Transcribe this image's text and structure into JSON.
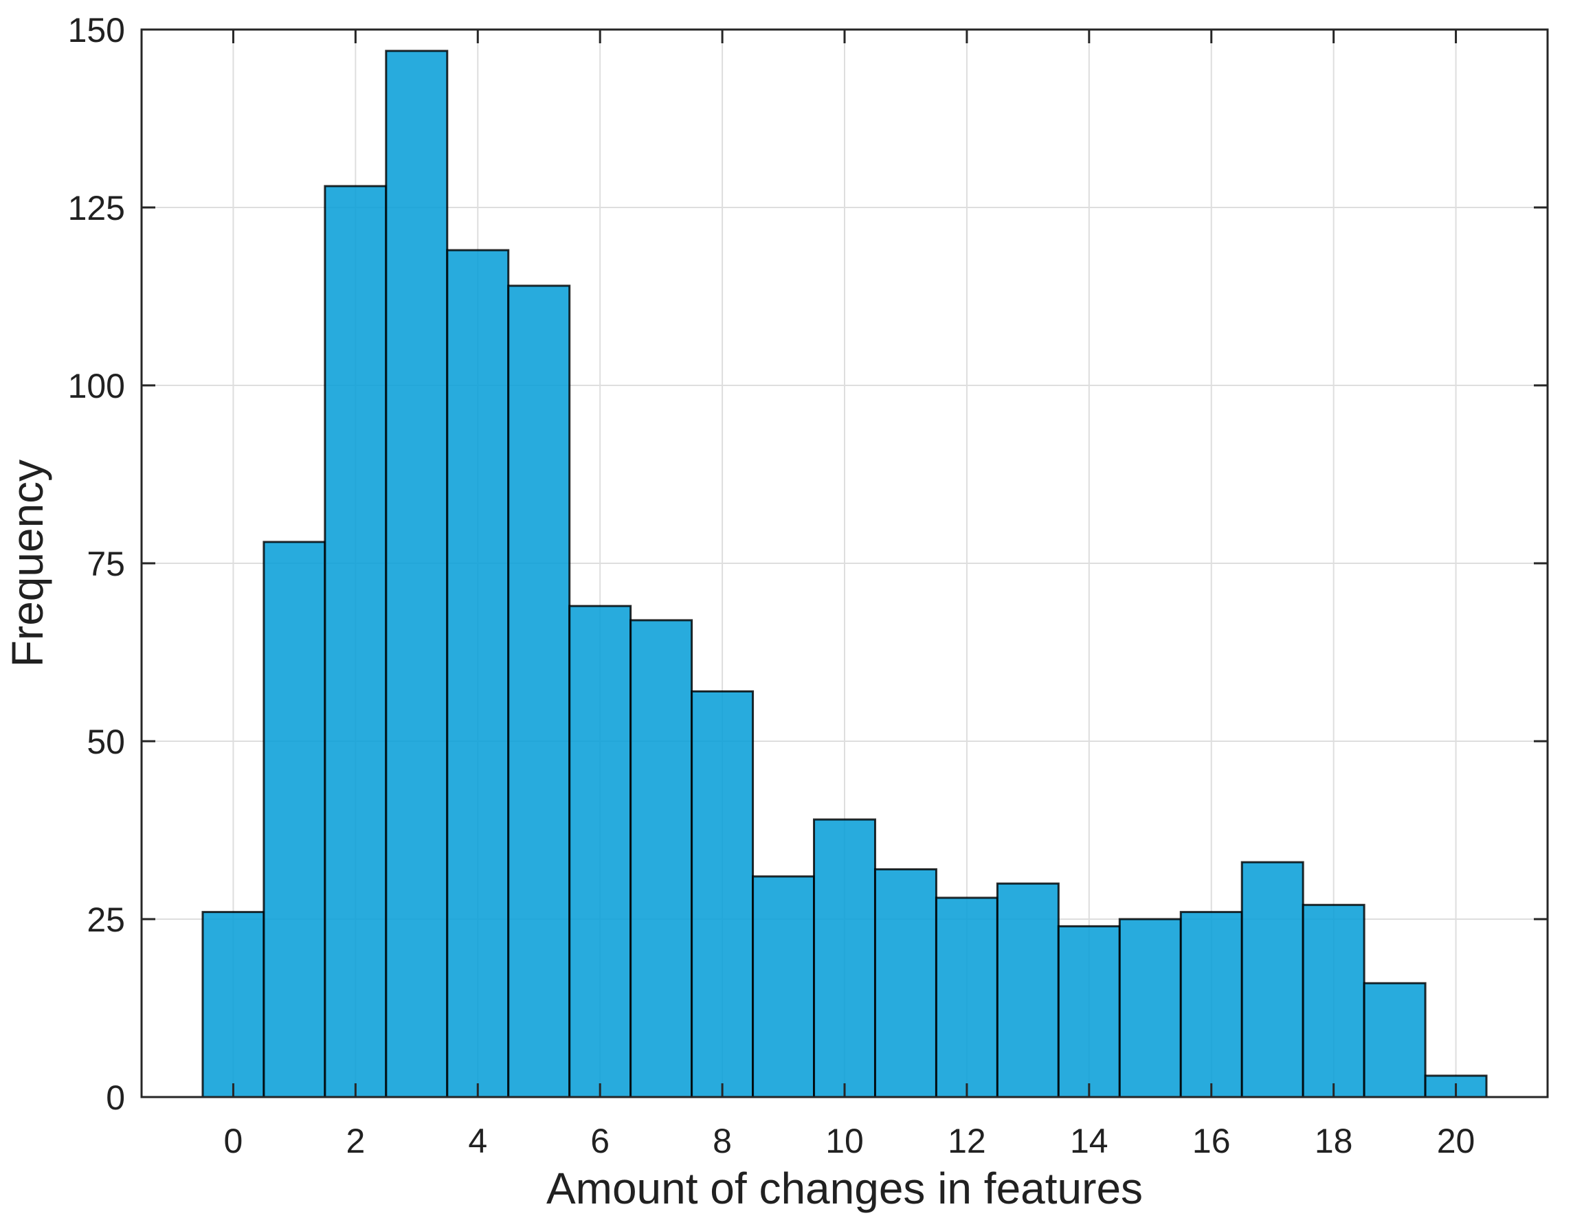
{
  "chart_data": {
    "type": "bar",
    "chart_kind": "histogram",
    "title": "",
    "xlabel": "Amount of changes in features",
    "ylabel": "Frequency",
    "categories": [
      0,
      1,
      2,
      3,
      4,
      5,
      6,
      7,
      8,
      9,
      10,
      11,
      12,
      13,
      14,
      15,
      16,
      17,
      18,
      19,
      20
    ],
    "values": [
      26,
      78,
      128,
      147,
      119,
      114,
      69,
      67,
      57,
      31,
      39,
      32,
      28,
      30,
      24,
      25,
      26,
      33,
      27,
      16,
      3
    ],
    "bin_width": 1,
    "xlim": [
      -1.5,
      21.5
    ],
    "ylim": [
      0,
      150
    ],
    "xticks": [
      0,
      2,
      4,
      6,
      8,
      10,
      12,
      14,
      16,
      18,
      20
    ],
    "xtick_labels": [
      "0",
      "2",
      "4",
      "6",
      "8",
      "10",
      "12",
      "14",
      "16",
      "18",
      "20"
    ],
    "yticks": [
      0,
      25,
      50,
      75,
      100,
      125,
      150
    ],
    "ytick_labels": [
      "0",
      "25",
      "50",
      "75",
      "100",
      "125",
      "150"
    ],
    "grid": true,
    "legend": null,
    "colors": {
      "bar_face": "#2BAADB",
      "bar_face_rgba": "rgba(10,159,216,0.88)",
      "bar_edge": "rgba(0,0,0,0.82)",
      "grid_line": "#DEDEDE",
      "axis_line": "#262626",
      "text": "#212121",
      "background": "#FFFFFF"
    }
  }
}
